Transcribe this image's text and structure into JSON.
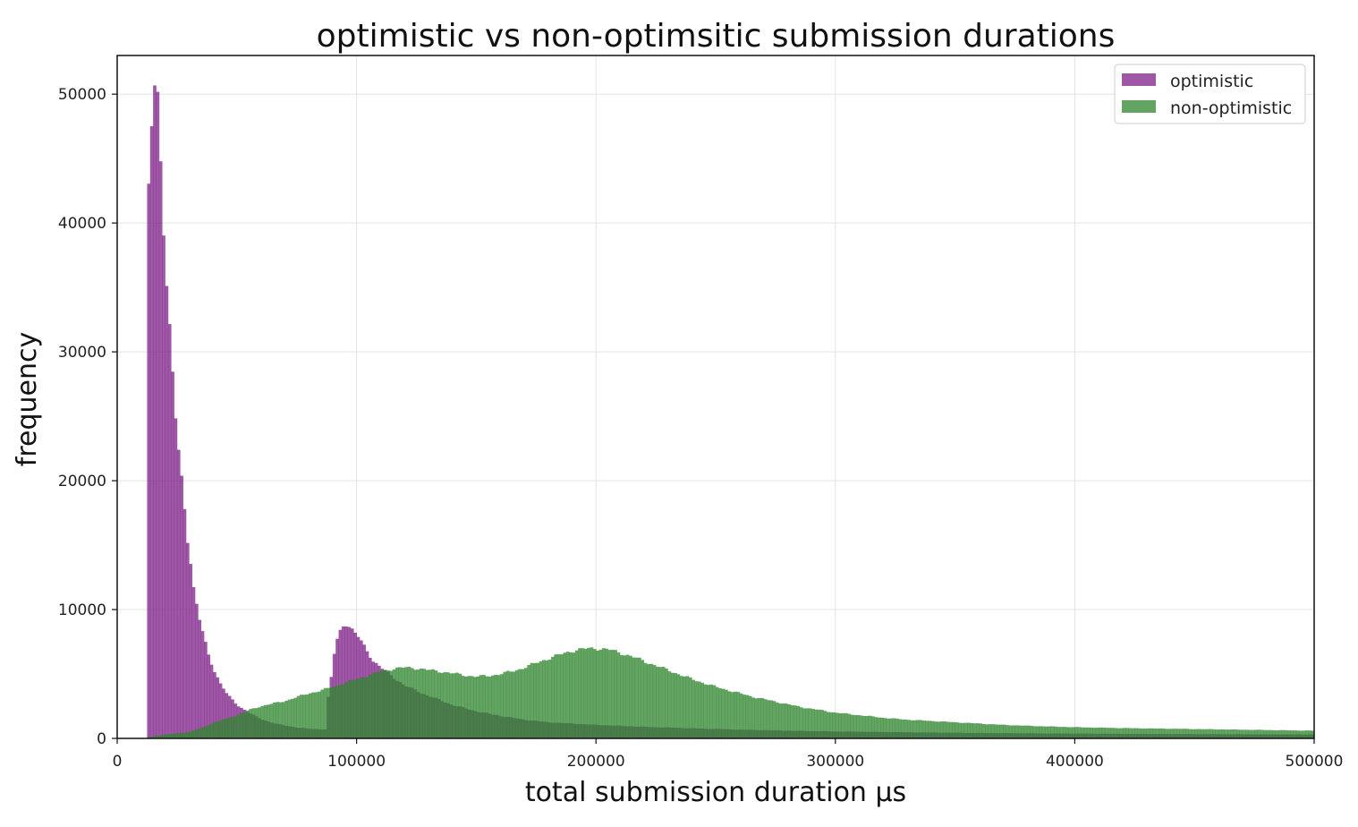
{
  "chart_data": {
    "type": "bar",
    "title": "optimistic vs non-optimsitic submission durations",
    "xlabel": "total submission duration μs",
    "ylabel": "frequency",
    "xlim": [
      0,
      500000
    ],
    "ylim": [
      0,
      53000
    ],
    "grid": true,
    "legend_position": "top-right",
    "x_ticks": [
      0,
      100000,
      200000,
      300000,
      400000,
      500000
    ],
    "x_tick_labels": [
      "0",
      "100000",
      "200000",
      "300000",
      "400000",
      "500000"
    ],
    "y_ticks": [
      0,
      10000,
      20000,
      30000,
      40000,
      50000
    ],
    "y_tick_labels": [
      "0",
      "10000",
      "20000",
      "30000",
      "40000",
      "50000"
    ],
    "bin_width": 1250,
    "series": [
      {
        "name": "optimistic",
        "color": "#7d1f85",
        "opacity": 0.75,
        "points": [
          [
            12500,
            0
          ],
          [
            13000,
            42000
          ],
          [
            14500,
            48000
          ],
          [
            15500,
            50500
          ],
          [
            17000,
            49500
          ],
          [
            18500,
            43500
          ],
          [
            20000,
            37500
          ],
          [
            21500,
            33000
          ],
          [
            23000,
            28500
          ],
          [
            24500,
            24500
          ],
          [
            26000,
            21500
          ],
          [
            27500,
            19000
          ],
          [
            29000,
            16000
          ],
          [
            30500,
            14000
          ],
          [
            32000,
            11500
          ],
          [
            34000,
            9500
          ],
          [
            36000,
            8000
          ],
          [
            38000,
            6500
          ],
          [
            40000,
            5500
          ],
          [
            43000,
            4300
          ],
          [
            46000,
            3400
          ],
          [
            50000,
            2600
          ],
          [
            55000,
            2000
          ],
          [
            60000,
            1500
          ],
          [
            65000,
            1200
          ],
          [
            70000,
            1000
          ],
          [
            75000,
            850
          ],
          [
            80000,
            750
          ],
          [
            85000,
            700
          ],
          [
            87000,
            700
          ],
          [
            88000,
            3000
          ],
          [
            90000,
            5500
          ],
          [
            91000,
            7200
          ],
          [
            93000,
            8300
          ],
          [
            95000,
            9000
          ],
          [
            97000,
            8700
          ],
          [
            99000,
            8200
          ],
          [
            101000,
            7800
          ],
          [
            103000,
            7200
          ],
          [
            105000,
            6600
          ],
          [
            107000,
            6000
          ],
          [
            110000,
            5500
          ],
          [
            115000,
            4800
          ],
          [
            120000,
            4100
          ],
          [
            130000,
            3300
          ],
          [
            140000,
            2600
          ],
          [
            150000,
            2100
          ],
          [
            160000,
            1750
          ],
          [
            170000,
            1450
          ],
          [
            180000,
            1250
          ],
          [
            190000,
            1150
          ],
          [
            200000,
            1050
          ],
          [
            220000,
            900
          ],
          [
            240000,
            780
          ],
          [
            260000,
            680
          ],
          [
            280000,
            600
          ],
          [
            300000,
            540
          ],
          [
            330000,
            470
          ],
          [
            360000,
            420
          ],
          [
            400000,
            370
          ],
          [
            450000,
            330
          ],
          [
            500000,
            300
          ]
        ]
      },
      {
        "name": "non-optimistic",
        "color": "#2f862f",
        "opacity": 0.75,
        "points": [
          [
            12500,
            0
          ],
          [
            13000,
            100
          ],
          [
            20000,
            300
          ],
          [
            30000,
            500
          ],
          [
            35000,
            800
          ],
          [
            40000,
            1200
          ],
          [
            45000,
            1500
          ],
          [
            50000,
            1800
          ],
          [
            55000,
            2200
          ],
          [
            60000,
            2500
          ],
          [
            65000,
            2700
          ],
          [
            70000,
            2900
          ],
          [
            75000,
            3200
          ],
          [
            80000,
            3500
          ],
          [
            85000,
            3700
          ],
          [
            90000,
            4000
          ],
          [
            95000,
            4300
          ],
          [
            100000,
            4600
          ],
          [
            105000,
            4900
          ],
          [
            110000,
            5200
          ],
          [
            115000,
            5400
          ],
          [
            120000,
            5500
          ],
          [
            125000,
            5450
          ],
          [
            130000,
            5300
          ],
          [
            135000,
            5200
          ],
          [
            140000,
            5050
          ],
          [
            145000,
            4900
          ],
          [
            150000,
            4800
          ],
          [
            155000,
            4850
          ],
          [
            160000,
            5000
          ],
          [
            165000,
            5200
          ],
          [
            170000,
            5500
          ],
          [
            175000,
            5850
          ],
          [
            180000,
            6200
          ],
          [
            185000,
            6500
          ],
          [
            190000,
            6800
          ],
          [
            195000,
            6950
          ],
          [
            200000,
            7000
          ],
          [
            205000,
            6900
          ],
          [
            210000,
            6650
          ],
          [
            215000,
            6350
          ],
          [
            220000,
            6000
          ],
          [
            225000,
            5650
          ],
          [
            230000,
            5300
          ],
          [
            235000,
            4950
          ],
          [
            240000,
            4600
          ],
          [
            245000,
            4300
          ],
          [
            250000,
            4000
          ],
          [
            255000,
            3750
          ],
          [
            260000,
            3500
          ],
          [
            265000,
            3250
          ],
          [
            270000,
            3050
          ],
          [
            275000,
            2850
          ],
          [
            280000,
            2650
          ],
          [
            285000,
            2450
          ],
          [
            290000,
            2300
          ],
          [
            295000,
            2150
          ],
          [
            300000,
            2000
          ],
          [
            310000,
            1800
          ],
          [
            320000,
            1600
          ],
          [
            330000,
            1450
          ],
          [
            340000,
            1350
          ],
          [
            350000,
            1250
          ],
          [
            360000,
            1150
          ],
          [
            370000,
            1050
          ],
          [
            380000,
            980
          ],
          [
            390000,
            920
          ],
          [
            400000,
            870
          ],
          [
            420000,
            800
          ],
          [
            440000,
            750
          ],
          [
            460000,
            700
          ],
          [
            480000,
            650
          ],
          [
            500000,
            600
          ]
        ]
      }
    ]
  }
}
